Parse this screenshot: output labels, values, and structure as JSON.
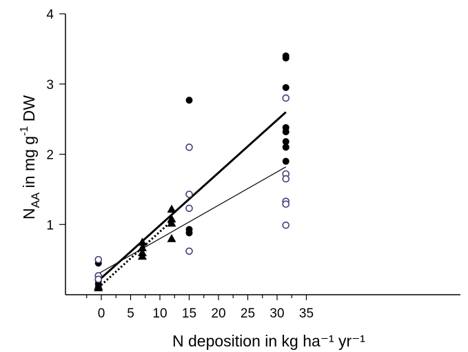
{
  "chart_data": {
    "type": "scatter",
    "xlabel": "N deposition in kg ha⁻¹ yr⁻¹",
    "ylabel": {
      "base": "N",
      "subscript": "AA",
      "rest": " in mg g",
      "superscript": "-1",
      "tail": " DW"
    },
    "xlim": [
      -2,
      37
    ],
    "ylim": [
      0,
      4
    ],
    "xticks": [
      0,
      5,
      10,
      15,
      20,
      25,
      30,
      35
    ],
    "yticks": [
      1,
      2,
      3,
      4
    ],
    "minor_xticks": [
      -2.5,
      2.5,
      7.5,
      12.5,
      17.5,
      22.5,
      27.5,
      32.5
    ],
    "grid": false,
    "legend": "none",
    "series": [
      {
        "marker": "filled-circle",
        "color": "#000000",
        "points": [
          [
            -0.5,
            0.45
          ],
          [
            -0.5,
            0.2
          ],
          [
            -0.5,
            0.15
          ],
          [
            -0.5,
            0.1
          ],
          [
            15,
            2.77
          ],
          [
            15,
            0.93
          ],
          [
            15,
            0.88
          ],
          [
            31.5,
            3.4
          ],
          [
            31.5,
            3.37
          ],
          [
            31.5,
            2.95
          ],
          [
            31.5,
            2.38
          ],
          [
            31.5,
            2.32
          ],
          [
            31.5,
            2.18
          ],
          [
            31.5,
            2.1
          ],
          [
            31.5,
            1.9
          ]
        ]
      },
      {
        "marker": "open-circle",
        "color": "#4a3a7a",
        "points": [
          [
            -0.5,
            0.5
          ],
          [
            -0.5,
            0.27
          ],
          [
            -0.5,
            0.22
          ],
          [
            15,
            2.1
          ],
          [
            15,
            1.43
          ],
          [
            15,
            1.23
          ],
          [
            15,
            0.62
          ],
          [
            31.5,
            2.8
          ],
          [
            31.5,
            1.72
          ],
          [
            31.5,
            1.65
          ],
          [
            31.5,
            1.33
          ],
          [
            31.5,
            1.29
          ],
          [
            31.5,
            0.99
          ]
        ]
      },
      {
        "marker": "filled-triangle",
        "color": "#000000",
        "points": [
          [
            -0.5,
            0.12
          ],
          [
            -0.5,
            0.1
          ],
          [
            7,
            0.75
          ],
          [
            7,
            0.67
          ],
          [
            7,
            0.6
          ],
          [
            7,
            0.55
          ],
          [
            12,
            1.22
          ],
          [
            12,
            1.08
          ],
          [
            12,
            1.02
          ],
          [
            12,
            0.8
          ]
        ]
      }
    ],
    "fits": [
      {
        "style": "solid-thick",
        "x": [
          -0.5,
          31.5
        ],
        "y": [
          0.2,
          2.6
        ]
      },
      {
        "style": "solid-thin",
        "x": [
          -0.5,
          31.5
        ],
        "y": [
          0.3,
          1.82
        ]
      },
      {
        "style": "dotted",
        "x": [
          -0.5,
          12
        ],
        "y": [
          0.1,
          1.05
        ]
      }
    ]
  }
}
